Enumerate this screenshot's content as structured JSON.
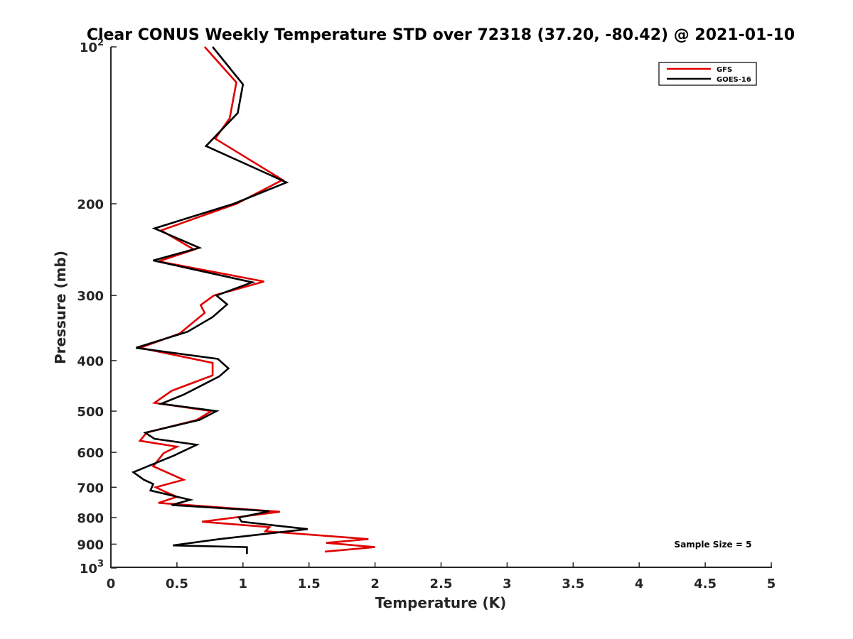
{
  "chart_data": {
    "type": "line",
    "title": "Clear CONUS Weekly Temperature STD over 72318 (37.20, -80.42) @ 2021-01-10",
    "xlabel": "Temperature (K)",
    "ylabel": "Pressure (mb)",
    "xlim": [
      0,
      5
    ],
    "ylim": [
      1000,
      100
    ],
    "yscale": "log",
    "y_reversed": true,
    "grid": false,
    "legend_position": "top-right",
    "x_ticks": [
      {
        "value": 0,
        "label": "0"
      },
      {
        "value": 0.5,
        "label": "0.5"
      },
      {
        "value": 1,
        "label": "1"
      },
      {
        "value": 1.5,
        "label": "1.5"
      },
      {
        "value": 2,
        "label": "2"
      },
      {
        "value": 2.5,
        "label": "2.5"
      },
      {
        "value": 3,
        "label": "3"
      },
      {
        "value": 3.5,
        "label": "3.5"
      },
      {
        "value": 4,
        "label": "4"
      },
      {
        "value": 4.5,
        "label": "4.5"
      },
      {
        "value": 5,
        "label": "5"
      }
    ],
    "y_ticks": [
      {
        "value": 100,
        "label": "10",
        "sup": "2"
      },
      {
        "value": 200,
        "label": "200"
      },
      {
        "value": 300,
        "label": "300"
      },
      {
        "value": 400,
        "label": "400"
      },
      {
        "value": 500,
        "label": "500"
      },
      {
        "value": 600,
        "label": "600"
      },
      {
        "value": 700,
        "label": "700"
      },
      {
        "value": 800,
        "label": "800"
      },
      {
        "value": 900,
        "label": "900"
      },
      {
        "value": 1000,
        "label": "10",
        "sup": "3"
      }
    ],
    "series": [
      {
        "name": "GFS",
        "color": "#e00000",
        "points": [
          [
            0.71,
            100
          ],
          [
            0.95,
            117
          ],
          [
            0.9,
            137
          ],
          [
            0.79,
            150
          ],
          [
            1.3,
            180
          ],
          [
            0.95,
            200
          ],
          [
            0.38,
            225
          ],
          [
            0.63,
            245
          ],
          [
            0.36,
            258
          ],
          [
            1.16,
            282
          ],
          [
            0.78,
            300
          ],
          [
            0.68,
            313
          ],
          [
            0.71,
            324
          ],
          [
            0.52,
            355
          ],
          [
            0.22,
            378
          ],
          [
            0.77,
            404
          ],
          [
            0.77,
            427
          ],
          [
            0.46,
            457
          ],
          [
            0.33,
            482
          ],
          [
            0.76,
            500
          ],
          [
            0.65,
            520
          ],
          [
            0.27,
            550
          ],
          [
            0.22,
            570
          ],
          [
            0.5,
            585
          ],
          [
            0.4,
            602
          ],
          [
            0.32,
            638
          ],
          [
            0.55,
            677
          ],
          [
            0.34,
            700
          ],
          [
            0.4,
            712
          ],
          [
            0.5,
            730
          ],
          [
            0.36,
            750
          ],
          [
            1.28,
            780
          ],
          [
            0.69,
            815
          ],
          [
            1.2,
            835
          ],
          [
            1.17,
            850
          ],
          [
            1.95,
            880
          ],
          [
            1.63,
            895
          ],
          [
            2.0,
            912
          ],
          [
            1.62,
            930
          ]
        ]
      },
      {
        "name": "GOES-16",
        "color": "#000000",
        "points": [
          [
            0.77,
            100
          ],
          [
            1.0,
            118
          ],
          [
            0.96,
            134
          ],
          [
            0.72,
            155
          ],
          [
            1.33,
            182
          ],
          [
            0.93,
            200
          ],
          [
            0.33,
            223
          ],
          [
            0.67,
            243
          ],
          [
            0.32,
            257
          ],
          [
            1.07,
            283
          ],
          [
            0.8,
            300
          ],
          [
            0.88,
            312
          ],
          [
            0.77,
            330
          ],
          [
            0.58,
            352
          ],
          [
            0.19,
            378
          ],
          [
            0.81,
            397
          ],
          [
            0.89,
            414
          ],
          [
            0.82,
            429
          ],
          [
            0.55,
            465
          ],
          [
            0.38,
            484
          ],
          [
            0.8,
            500
          ],
          [
            0.67,
            520
          ],
          [
            0.26,
            550
          ],
          [
            0.33,
            565
          ],
          [
            0.65,
            580
          ],
          [
            0.48,
            608
          ],
          [
            0.17,
            655
          ],
          [
            0.25,
            677
          ],
          [
            0.32,
            690
          ],
          [
            0.3,
            710
          ],
          [
            0.6,
            740
          ],
          [
            0.46,
            757
          ],
          [
            1.2,
            778
          ],
          [
            0.97,
            800
          ],
          [
            0.99,
            815
          ],
          [
            1.49,
            842
          ],
          [
            0.82,
            880
          ],
          [
            0.47,
            905
          ],
          [
            1.03,
            912
          ],
          [
            1.03,
            940
          ]
        ]
      }
    ],
    "annotation": "Sample Size = 5"
  }
}
